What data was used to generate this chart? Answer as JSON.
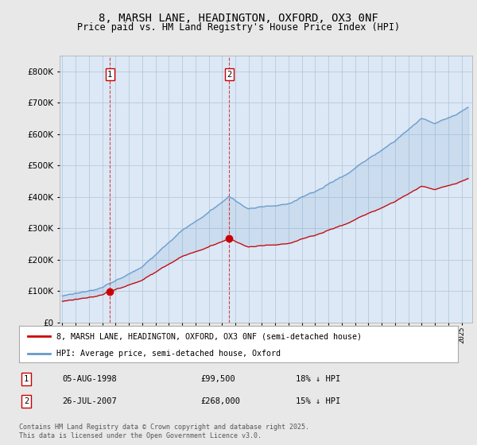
{
  "title": "8, MARSH LANE, HEADINGTON, OXFORD, OX3 0NF",
  "subtitle": "Price paid vs. HM Land Registry's House Price Index (HPI)",
  "title_fontsize": 10,
  "subtitle_fontsize": 8.5,
  "background_color": "#e8e8e8",
  "plot_background_color": "#dce8f5",
  "grid_color": "#b0c4d8",
  "hpi_color": "#6699cc",
  "price_color": "#cc0000",
  "dashed_line_color": "#cc0000",
  "dashed_line_alpha": 0.7,
  "ylim": [
    0,
    850000
  ],
  "yticks": [
    0,
    100000,
    200000,
    300000,
    400000,
    500000,
    600000,
    700000,
    800000
  ],
  "sale1_year": 1998.58,
  "sale1_price": 99500,
  "sale2_year": 2007.55,
  "sale2_price": 268000,
  "legend_price_label": "8, MARSH LANE, HEADINGTON, OXFORD, OX3 0NF (semi-detached house)",
  "legend_hpi_label": "HPI: Average price, semi-detached house, Oxford",
  "footer": "Contains HM Land Registry data © Crown copyright and database right 2025.\nThis data is licensed under the Open Government Licence v3.0.",
  "xmin": 1994.8,
  "xmax": 2025.8
}
